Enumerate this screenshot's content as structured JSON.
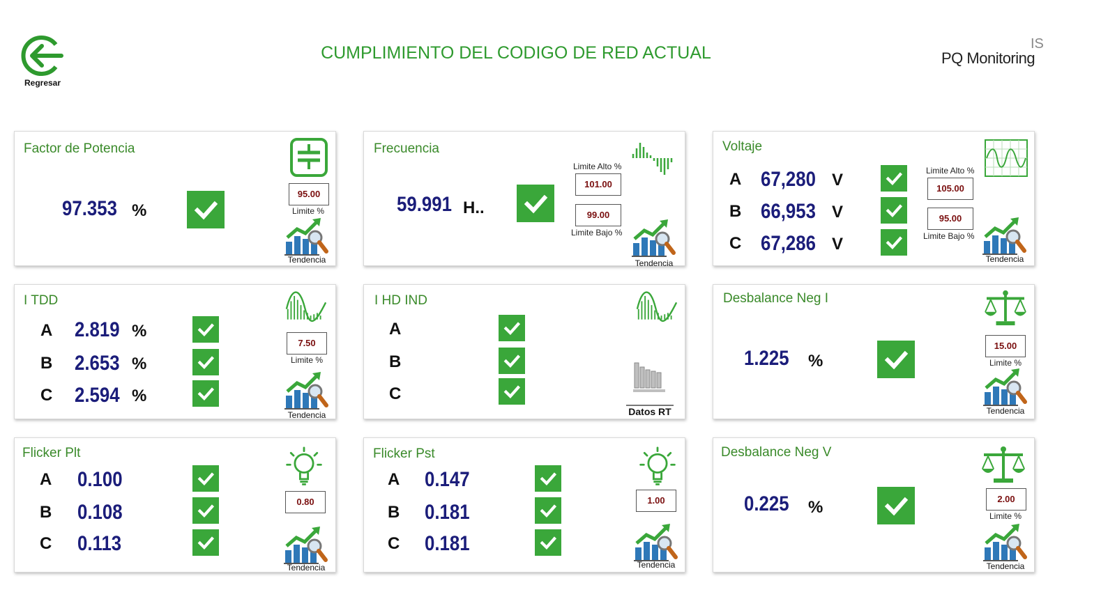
{
  "header": {
    "back_label": "Regresar",
    "title": "CUMPLIMIENTO DEL CODIGO DE RED ACTUAL",
    "brand_top": "IS",
    "brand_name": "PQ Monitoring"
  },
  "colors": {
    "accent": "#2e9a2e",
    "value": "#1b1d7a",
    "limit": "#7a0f0f",
    "check": "#3aa73a"
  },
  "trend_label": "Tendencia",
  "cards": {
    "pf": {
      "title": "Factor de Potencia",
      "value": "97.353",
      "unit": "%",
      "limit": "95.00",
      "limit_label": "Limite %"
    },
    "freq": {
      "title": "Frecuencia",
      "value": "59.991",
      "unit": "H..",
      "limit_high_label": "Limite Alto %",
      "limit_high": "101.00",
      "limit_low": "99.00",
      "limit_low_label": "Limite Bajo %"
    },
    "volt": {
      "title": "Voltaje",
      "rows": [
        {
          "phase": "A",
          "value": "67,280",
          "unit": "V"
        },
        {
          "phase": "B",
          "value": "66,953",
          "unit": "V"
        },
        {
          "phase": "C",
          "value": "67,286",
          "unit": "V"
        }
      ],
      "limit_high_label": "Limite Alto %",
      "limit_high": "105.00",
      "limit_low": "95.00",
      "limit_low_label": "Limite Bajo %"
    },
    "itdd": {
      "title": "I TDD",
      "rows": [
        {
          "phase": "A",
          "value": "2.819",
          "unit": "%"
        },
        {
          "phase": "B",
          "value": "2.653",
          "unit": "%"
        },
        {
          "phase": "C",
          "value": "2.594",
          "unit": "%"
        }
      ],
      "limit": "7.50",
      "limit_label": "Limite %"
    },
    "ihd": {
      "title": "I HD IND",
      "rows": [
        {
          "phase": "A"
        },
        {
          "phase": "B"
        },
        {
          "phase": "C"
        }
      ],
      "rt_label": "Datos RT"
    },
    "dni": {
      "title": "Desbalance Neg I",
      "value": "1.225",
      "unit": "%",
      "limit": "15.00",
      "limit_label": "Limite %"
    },
    "plt": {
      "title": "Flicker Plt",
      "rows": [
        {
          "phase": "A",
          "value": "0.100"
        },
        {
          "phase": "B",
          "value": "0.108"
        },
        {
          "phase": "C",
          "value": "0.113"
        }
      ],
      "limit": "0.80"
    },
    "pst": {
      "title": "Flicker Pst",
      "rows": [
        {
          "phase": "A",
          "value": "0.147"
        },
        {
          "phase": "B",
          "value": "0.181"
        },
        {
          "phase": "C",
          "value": "0.181"
        }
      ],
      "limit": "1.00"
    },
    "dnv": {
      "title": "Desbalance Neg V",
      "value": "0.225",
      "unit": "%",
      "limit": "2.00",
      "limit_label": "Limite %"
    }
  }
}
